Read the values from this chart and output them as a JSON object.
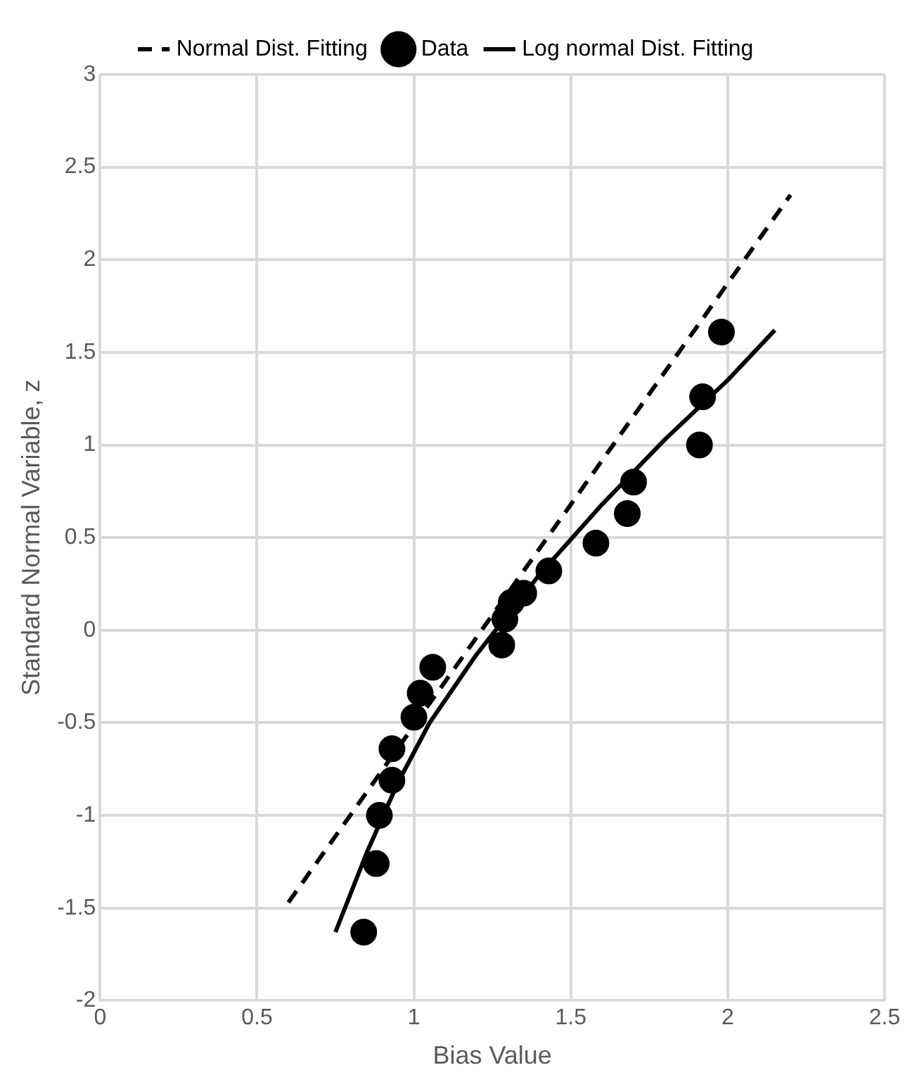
{
  "chart_data": {
    "type": "scatter",
    "xlabel": "Bias Value",
    "ylabel": "Standard Normal Variable, z",
    "xlim": [
      0,
      2.5
    ],
    "xticks": [
      0,
      0.5,
      1,
      1.5,
      2,
      2.5
    ],
    "ylim": [
      -2,
      3
    ],
    "yticks": [
      -2,
      -1.5,
      -1,
      -0.5,
      0,
      0.5,
      1,
      1.5,
      2,
      2.5,
      3
    ],
    "grid": true,
    "legend": "top",
    "series": [
      {
        "name": "Normal Dist. Fitting",
        "type": "line",
        "color": "#000000",
        "line_style": "dashed",
        "marker": "none",
        "x": [
          0.6,
          2.2
        ],
        "values": [
          -1.47,
          2.35
        ]
      },
      {
        "name": "Data",
        "type": "scatter",
        "color": "#000000",
        "marker": "circle",
        "x": [
          0.84,
          0.88,
          0.89,
          0.93,
          0.93,
          1.0,
          1.02,
          1.06,
          1.28,
          1.29,
          1.31,
          1.35,
          1.43,
          1.58,
          1.68,
          1.7,
          1.91,
          1.92,
          1.98
        ],
        "values": [
          -1.63,
          -1.26,
          -1.0,
          -0.81,
          -0.64,
          -0.47,
          -0.34,
          -0.2,
          -0.08,
          0.06,
          0.15,
          0.2,
          0.32,
          0.47,
          0.63,
          0.8,
          1.0,
          1.26,
          1.61
        ]
      },
      {
        "name": "Log normal Dist. Fitting",
        "type": "line",
        "color": "#000000",
        "line_style": "solid",
        "marker": "none",
        "x": [
          0.75,
          0.85,
          0.95,
          1.05,
          1.2,
          1.4,
          1.6,
          1.8,
          2.0,
          2.15
        ],
        "values": [
          -1.63,
          -1.2,
          -0.82,
          -0.5,
          -0.13,
          0.3,
          0.68,
          1.03,
          1.35,
          1.62
        ]
      }
    ]
  }
}
